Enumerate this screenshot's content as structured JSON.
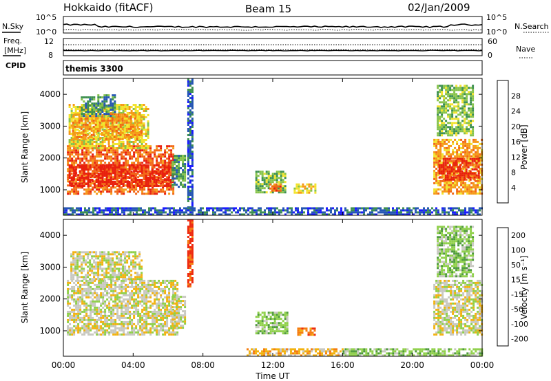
{
  "header": {
    "station": "Hokkaido (fitACF)",
    "beam": "Beam 15",
    "date": "02/Jan/2009"
  },
  "noise_panel": {
    "left_label": "N.Sky",
    "right_label": "N.Search",
    "tick_top": "10^5",
    "tick_bottom": "10^0"
  },
  "freq_panel": {
    "left_label_1": "Freq.",
    "left_label_2": "[MHz]",
    "left_tick_top": "12",
    "left_tick_bottom": "8",
    "right_label": "Nave",
    "right_tick_top": "60",
    "right_tick_bottom": "0"
  },
  "cpid_panel": {
    "label": "CPID",
    "value": "themis 3300"
  },
  "time_axis": {
    "label": "Time UT",
    "ticks": [
      "00:00",
      "04:00",
      "08:00",
      "12:00",
      "16:00",
      "20:00",
      "00:00"
    ]
  },
  "colors": {
    "power_scale": [
      "#1a1aff",
      "#2456b3",
      "#3d9050",
      "#86c34b",
      "#f2e32c",
      "#f59a16",
      "#f26716",
      "#e8200e"
    ],
    "velocity_scale": [
      "#1f2fc4",
      "#2a5fa8",
      "#4e9a3c",
      "#8fd04a",
      "#c8c8c0",
      "#f2b210",
      "#f57d10",
      "#ee2a0e"
    ],
    "ground_scatter": "#c8c8c0"
  },
  "chart_data": [
    {
      "type": "heatmap",
      "name": "power",
      "ylabel": "Slant Range [km]",
      "yticks": [
        1000,
        2000,
        3000,
        4000
      ],
      "ylim": [
        200,
        4500
      ],
      "xlim_hours": [
        0,
        24
      ],
      "colorbar_label": "Power [dB]",
      "colorbar_ticks": [
        "4",
        "8",
        "12",
        "16",
        "20",
        "24",
        "28"
      ],
      "regions": [
        {
          "t0": 0.2,
          "t1": 6.3,
          "r0": 900,
          "r1": 2400,
          "level": 6
        },
        {
          "t0": 0.3,
          "t1": 6.3,
          "r0": 1100,
          "r1": 1800,
          "level": 7
        },
        {
          "t0": 0.3,
          "t1": 4.8,
          "r0": 2300,
          "r1": 3700,
          "level": 4
        },
        {
          "t0": 0.5,
          "t1": 4.5,
          "r0": 2600,
          "r1": 3400,
          "level": 5
        },
        {
          "t0": 1.0,
          "t1": 3.0,
          "r0": 3300,
          "r1": 4000,
          "level": 2
        },
        {
          "t0": 6.2,
          "t1": 7.0,
          "r0": 1100,
          "r1": 2100,
          "level": 2
        },
        {
          "t0": 7.1,
          "t1": 7.4,
          "r0": 400,
          "r1": 4500,
          "level": 1
        },
        {
          "t0": 11.0,
          "t1": 12.7,
          "r0": 900,
          "r1": 1600,
          "level": 3
        },
        {
          "t0": 11.8,
          "t1": 12.5,
          "r0": 1000,
          "r1": 1200,
          "level": 6
        },
        {
          "t0": 13.2,
          "t1": 14.4,
          "r0": 900,
          "r1": 1200,
          "level": 4
        },
        {
          "t0": 0.0,
          "t1": 24.0,
          "r0": 250,
          "r1": 450,
          "level": 1
        },
        {
          "t0": 21.2,
          "t1": 24.0,
          "r0": 900,
          "r1": 2600,
          "level": 5
        },
        {
          "t0": 21.5,
          "t1": 23.8,
          "r0": 1300,
          "r1": 2000,
          "level": 7
        },
        {
          "t0": 21.4,
          "t1": 23.5,
          "r0": 2700,
          "r1": 4300,
          "level": 3
        }
      ]
    },
    {
      "type": "heatmap",
      "name": "velocity",
      "ylabel": "Slant Range [km]",
      "yticks": [
        1000,
        2000,
        3000,
        4000
      ],
      "ylim": [
        200,
        4500
      ],
      "xlim_hours": [
        0,
        24
      ],
      "colorbar_label": "Velocity [m s⁻¹]",
      "colorbar_ticks": [
        "200",
        "100",
        "50",
        "15",
        "-15",
        "-50",
        "-100",
        "-200"
      ],
      "regions": [
        {
          "t0": 0.2,
          "t1": 6.5,
          "r0": 900,
          "r1": 2600,
          "level": 4
        },
        {
          "t0": 0.4,
          "t1": 4.5,
          "r0": 2600,
          "r1": 3500,
          "level": 4
        },
        {
          "t0": 6.2,
          "t1": 7.0,
          "r0": 1100,
          "r1": 2100,
          "level": 4
        },
        {
          "t0": 7.1,
          "t1": 7.4,
          "r0": 2400,
          "r1": 4500,
          "level": 7
        },
        {
          "t0": 11.0,
          "t1": 12.8,
          "r0": 900,
          "r1": 1600,
          "level": 3
        },
        {
          "t0": 13.4,
          "t1": 14.4,
          "r0": 900,
          "r1": 1100,
          "level": 6
        },
        {
          "t0": 10.5,
          "t1": 16.0,
          "r0": 250,
          "r1": 450,
          "level": 5
        },
        {
          "t0": 16.0,
          "t1": 24.0,
          "r0": 250,
          "r1": 450,
          "level": 3
        },
        {
          "t0": 21.2,
          "t1": 24.0,
          "r0": 900,
          "r1": 2600,
          "level": 4
        },
        {
          "t0": 21.4,
          "t1": 23.5,
          "r0": 2700,
          "r1": 4300,
          "level": 3
        }
      ]
    }
  ]
}
